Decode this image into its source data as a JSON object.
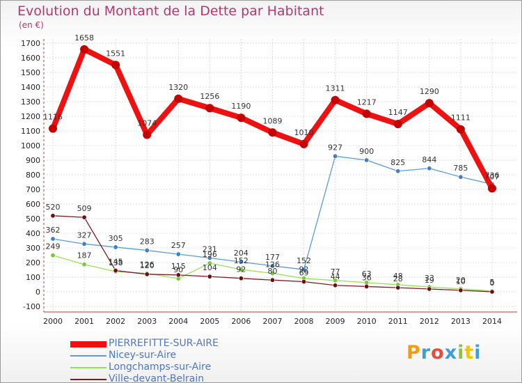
{
  "title": "Evolution du Montant de la Dette par Habitant",
  "unit_label": "(en €)",
  "brand": {
    "letters": [
      "P",
      "r",
      "o",
      "x",
      "i",
      "t",
      "i"
    ],
    "colors": [
      "#f39c12",
      "#3aa0d8",
      "#e74c3c",
      "#3aa0d8",
      "#8bc34a",
      "#f1c40f",
      "#3aa0d8"
    ]
  },
  "chart_data": {
    "type": "line",
    "title": "Evolution du Montant de la Dette par Habitant",
    "ylabel": "(en €)",
    "xlabel": "",
    "x": [
      "2000",
      "2001",
      "2002",
      "2003",
      "2004",
      "2005",
      "2006",
      "2007",
      "2008",
      "2009",
      "2010",
      "2011",
      "2012",
      "2013",
      "2014"
    ],
    "ylim": [
      -100,
      1700
    ],
    "yticks": [
      -100,
      0,
      100,
      200,
      300,
      400,
      500,
      600,
      700,
      800,
      900,
      1000,
      1100,
      1200,
      1300,
      1400,
      1500,
      1600,
      1700
    ],
    "grid": true,
    "legend_position": "bottom-left",
    "series": [
      {
        "name": "PIERREFITTE-SUR-AIRE",
        "color": "#ee1111",
        "marker_color": "#c40000",
        "values": [
          1116,
          1658,
          1551,
          1074,
          1320,
          1256,
          1190,
          1089,
          1010,
          1311,
          1217,
          1147,
          1290,
          1111,
          707
        ],
        "labels": [
          "1116",
          "1658",
          "1551",
          "1074",
          "1320",
          "1256",
          "1190",
          "1089",
          "1010",
          "1311",
          "1217",
          "1147",
          "1290",
          "1111",
          "707"
        ]
      },
      {
        "name": "Nicey-sur-Aire",
        "color": "#5b9bd5",
        "marker_color": "#3f7fc2",
        "values": [
          362,
          327,
          305,
          283,
          257,
          231,
          204,
          177,
          152,
          927,
          900,
          825,
          844,
          785,
          736
        ],
        "labels": [
          "362",
          "327",
          "305",
          "283",
          "257",
          "231",
          "204",
          "177",
          "152",
          "927",
          "900",
          "825",
          "844",
          "785",
          "736"
        ]
      },
      {
        "name": "Longchamps-sur-Aire",
        "color": "#99e05a",
        "marker_color": "#7cc83a",
        "values": [
          249,
          187,
          138,
          126,
          90,
          196,
          152,
          126,
          92,
          77,
          63,
          48,
          33,
          20,
          5
        ],
        "labels": [
          "249",
          "187",
          "138",
          "126",
          "90",
          "196",
          "152",
          "126",
          "92",
          "77",
          "63",
          "48",
          "33",
          "20",
          "5"
        ]
      },
      {
        "name": "Ville-devant-Belrain",
        "color": "#7a1d20",
        "marker_color": "#6a1010",
        "values": [
          520,
          509,
          145,
          120,
          115,
          104,
          92,
          80,
          69,
          44,
          36,
          28,
          19,
          10,
          0
        ],
        "labels": [
          "520",
          "509",
          "145",
          "120",
          "115",
          "104",
          "92",
          "80",
          "69",
          "44",
          "36",
          "28",
          "19",
          "10",
          "0"
        ]
      }
    ]
  }
}
